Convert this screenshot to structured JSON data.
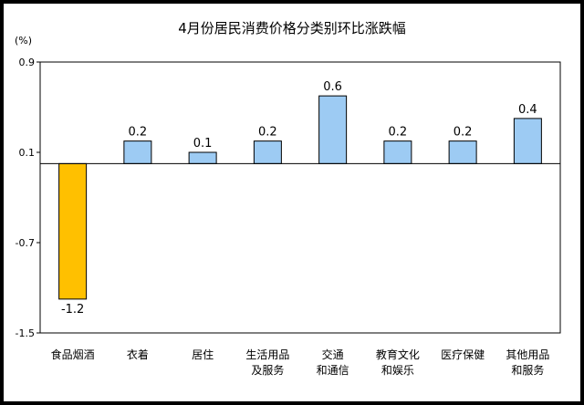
{
  "chart_data": {
    "type": "bar",
    "title": "4月份居民消费价格分类别环比涨跌幅",
    "ylabel": "(%)",
    "categories": [
      [
        "食品烟酒"
      ],
      [
        "衣着"
      ],
      [
        "居住"
      ],
      [
        "生活用品",
        "及服务"
      ],
      [
        "交通",
        "和通信"
      ],
      [
        "教育文化",
        "和娱乐"
      ],
      [
        "医疗保健"
      ],
      [
        "其他用品",
        "和服务"
      ]
    ],
    "values": [
      -1.2,
      0.2,
      0.1,
      0.2,
      0.6,
      0.2,
      0.2,
      0.4
    ],
    "data_labels": [
      "-1.2",
      "0.2",
      "0.1",
      "0.2",
      "0.6",
      "0.2",
      "0.2",
      "0.4"
    ],
    "ylim": [
      -1.5,
      0.9
    ],
    "yticks": [
      0.9,
      0.1,
      -0.7,
      -1.5
    ],
    "ytick_labels": [
      "0.9",
      "0.1",
      "-0.7",
      "-1.5"
    ],
    "grid": false,
    "legend": "none",
    "colors": {
      "positive_fill": "#9DCBF3",
      "negative_fill": "#FFC000",
      "bar_stroke": "#000000"
    }
  }
}
